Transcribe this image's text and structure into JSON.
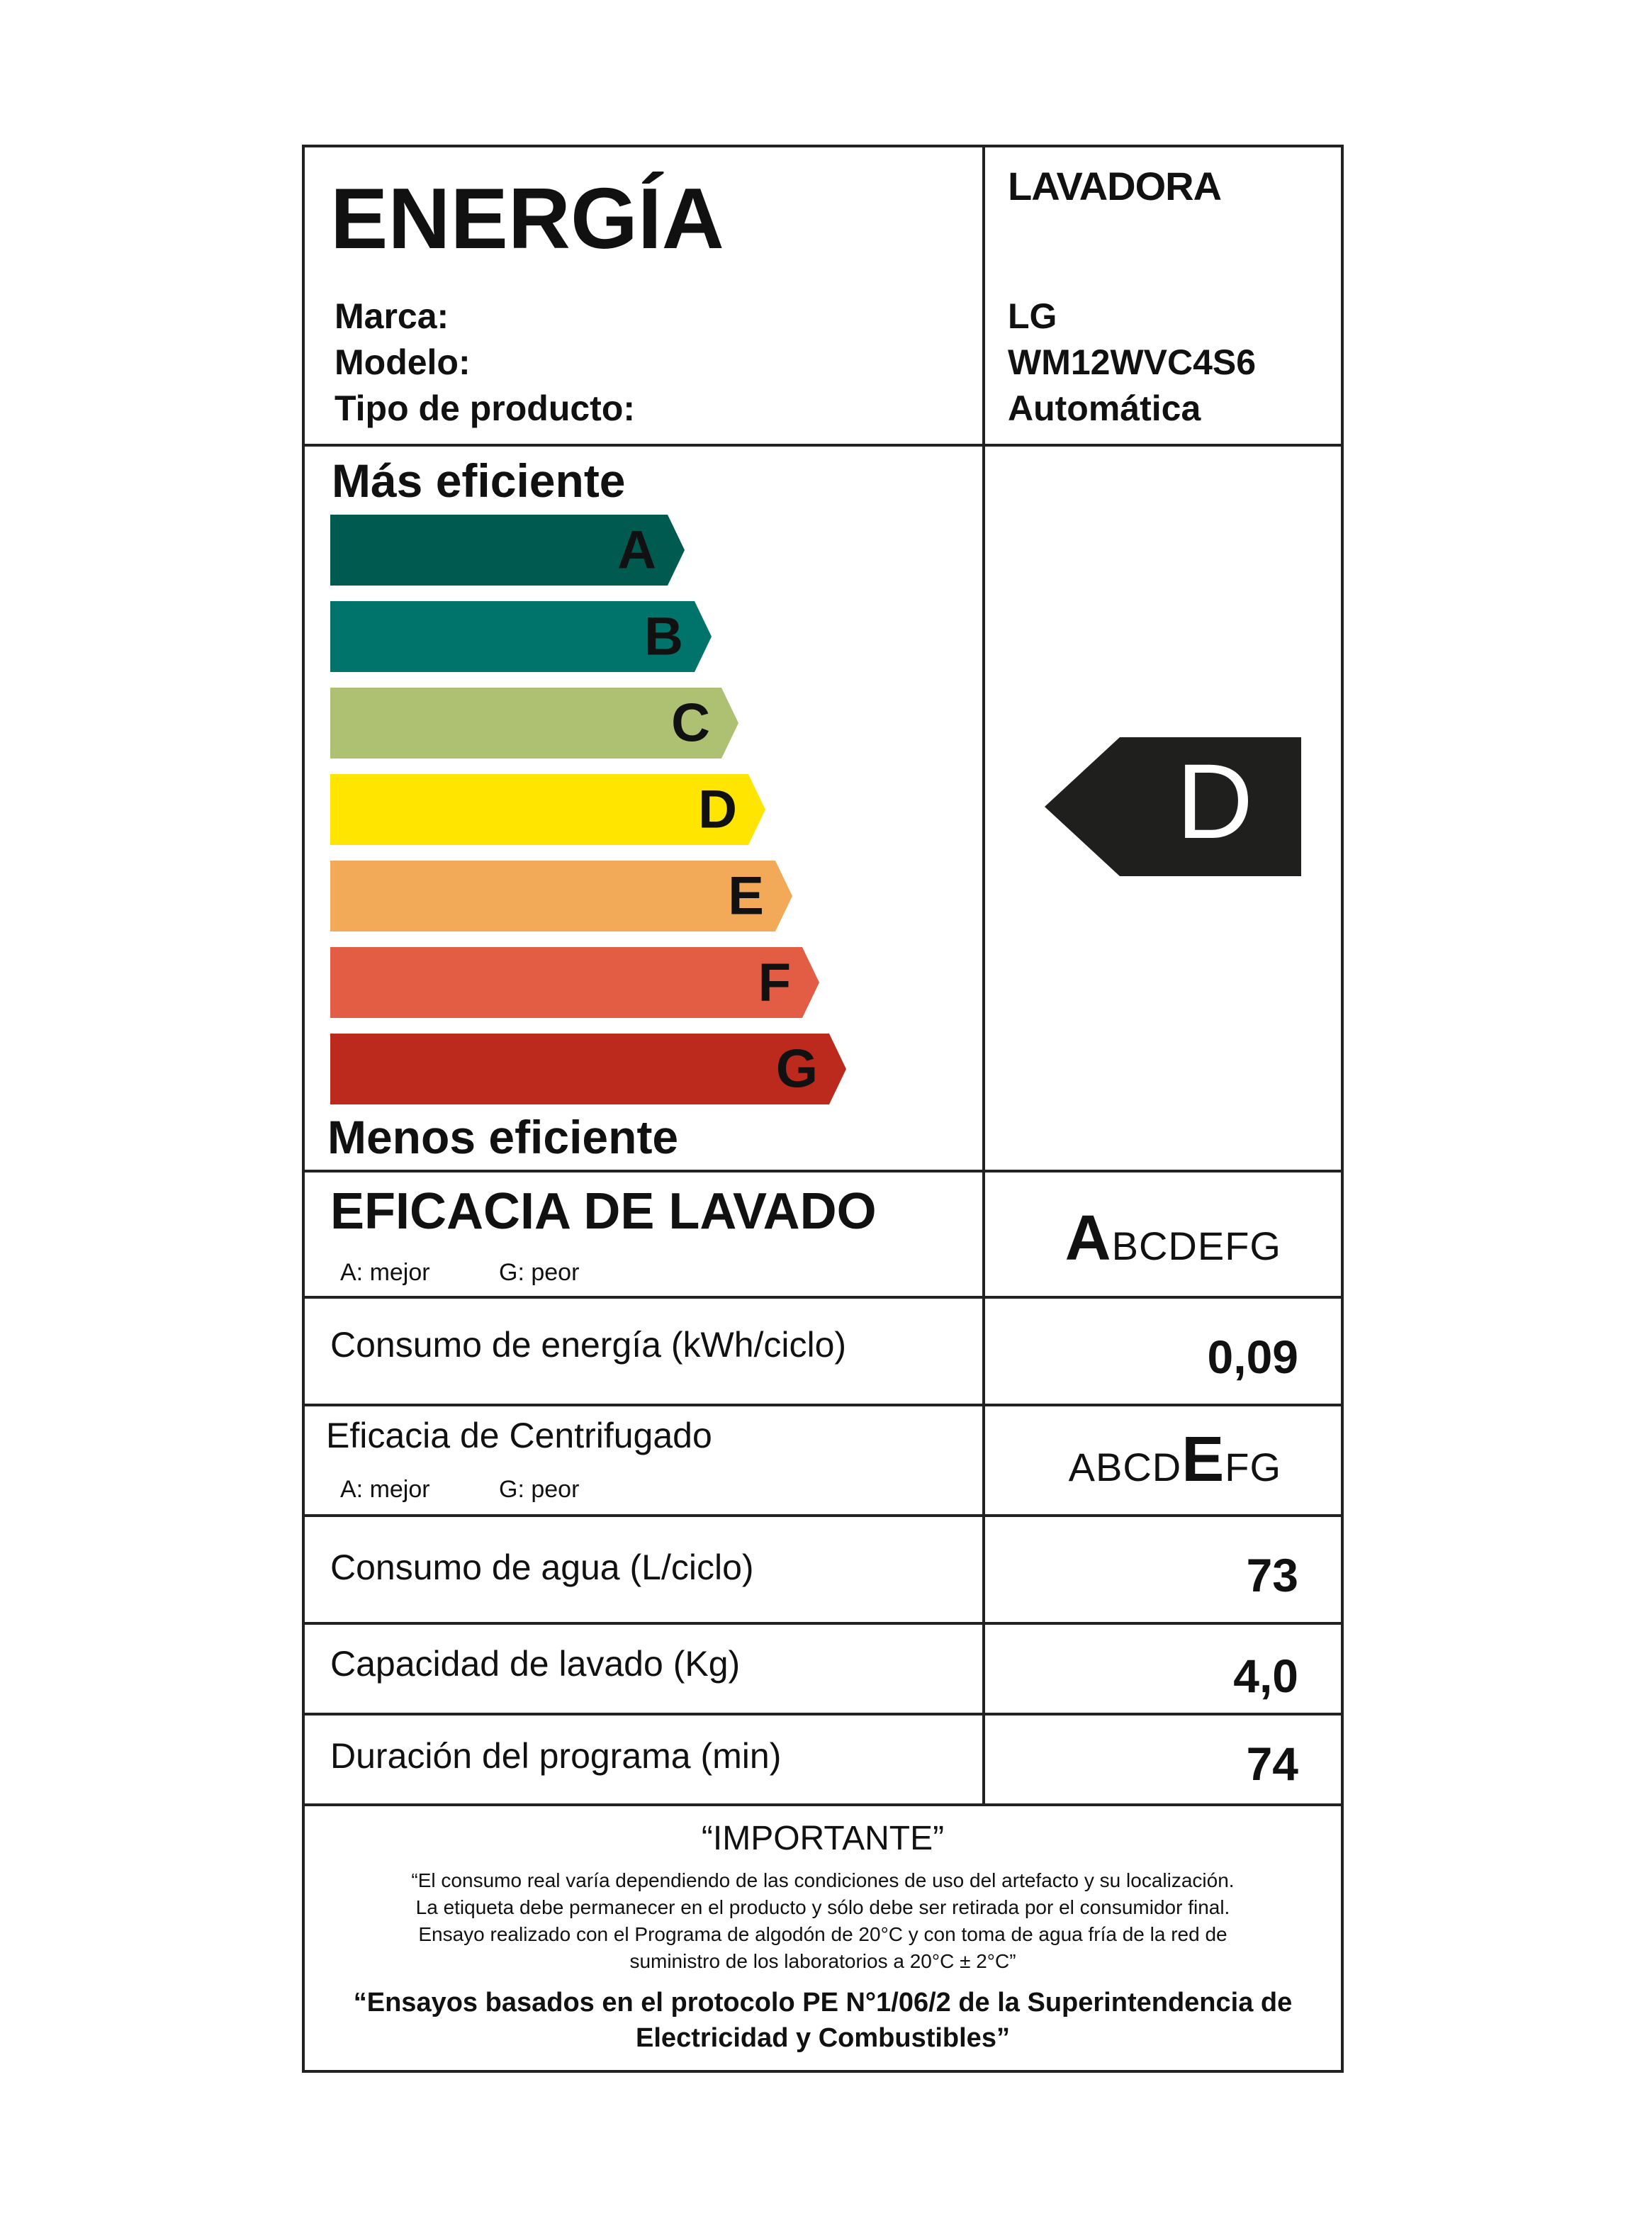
{
  "header": {
    "title": "ENERGÍA",
    "category": "LAVADORA"
  },
  "info": [
    {
      "label": "Marca:",
      "value": "LG"
    },
    {
      "label": "Modelo:",
      "value": "WM12WVC4S6"
    },
    {
      "label": "Tipo de producto:",
      "value": "Automática"
    }
  ],
  "efficiency": {
    "top_label": "Más eficiente",
    "bottom_label": "Menos eficiente",
    "classes": [
      {
        "letter": "A",
        "color": "#005a50"
      },
      {
        "letter": "B",
        "color": "#00746b"
      },
      {
        "letter": "C",
        "color": "#aec173"
      },
      {
        "letter": "D",
        "color": "#ffe500"
      },
      {
        "letter": "E",
        "color": "#f3aa58"
      },
      {
        "letter": "F",
        "color": "#e35d45"
      },
      {
        "letter": "G",
        "color": "#bc2a1e"
      }
    ],
    "rating": "D",
    "rating_color": "#1f1f1d"
  },
  "washing": {
    "title": "EFICACIA DE LAVADO",
    "best": "A: mejor",
    "worst": "G: peor",
    "scale_highlight": "A",
    "scale_rest": "BCDEFG"
  },
  "energy": {
    "label": "Consumo de energía (kWh/ciclo)",
    "value": "0,09"
  },
  "spin": {
    "label": "Eficacia de Centrifugado",
    "best": "A: mejor",
    "worst": "G: peor",
    "scale_before": "ABCD",
    "scale_highlight": "E",
    "scale_after": "FG"
  },
  "water": {
    "label": "Consumo de agua (L/ciclo)",
    "value": "73"
  },
  "capacity": {
    "label": "Capacidad de lavado (Kg)",
    "value": "4,0"
  },
  "duration": {
    "label": "Duración del programa (min)",
    "value": "74"
  },
  "important": {
    "title": "“IMPORTANTE”",
    "lines": [
      "“El consumo real varía dependiendo de las condiciones de uso del artefacto y su localización.",
      "La etiqueta debe permanecer en el producto y sólo debe ser retirada por el consumidor final.",
      "Ensayo realizado con el Programa de algodón de 20°C y con toma de agua fría de la red de",
      "suministro de los laboratorios a 20°C ± 2°C”"
    ],
    "protocol": [
      "“Ensayos basados en el protocolo PE N°1/06/2 de la Superintendencia de",
      "Electricidad y Combustibles”"
    ]
  }
}
